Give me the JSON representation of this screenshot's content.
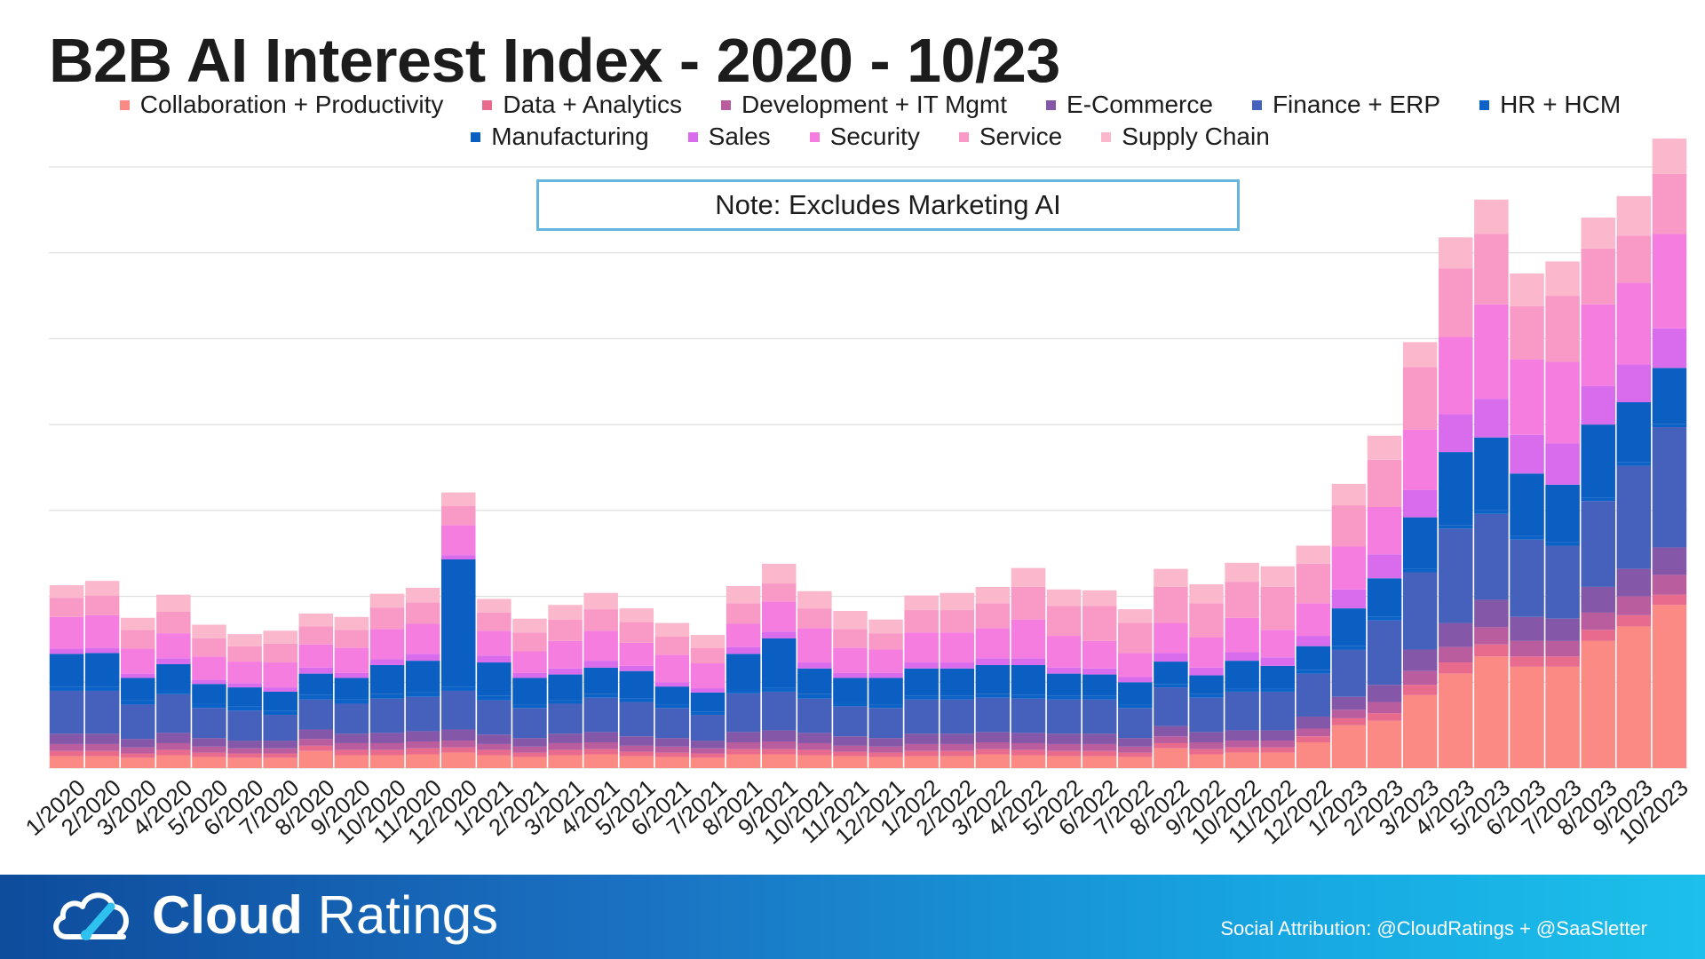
{
  "title": "B2B AI Interest Index - 2020 - 10/23",
  "note": "Note: Excludes Marketing AI",
  "footer": {
    "brand_bold": "Cloud",
    "brand_light": " Ratings",
    "logo_icon": "cloud-gauge-icon",
    "attribution": "Social Attribution: @CloudRatings + @SaaSletter"
  },
  "chart_data": {
    "type": "bar",
    "stacked": true,
    "title": "B2B AI Interest Index - 2020 - 10/23",
    "xlabel": "",
    "ylabel": "",
    "y_tick_labels_shown": false,
    "grid": true,
    "ylim": [
      0,
      70
    ],
    "legend_position": "top",
    "categories": [
      "1/2020",
      "2/2020",
      "3/2020",
      "4/2020",
      "5/2020",
      "6/2020",
      "7/2020",
      "8/2020",
      "9/2020",
      "10/2020",
      "11/2020",
      "12/2020",
      "1/2021",
      "2/2021",
      "3/2021",
      "4/2021",
      "5/2021",
      "6/2021",
      "7/2021",
      "8/2021",
      "9/2021",
      "10/2021",
      "11/2021",
      "12/2021",
      "1/2022",
      "2/2022",
      "3/2022",
      "4/2022",
      "5/2022",
      "6/2022",
      "7/2022",
      "8/2022",
      "9/2022",
      "10/2022",
      "11/2022",
      "12/2022",
      "1/2023",
      "2/2023",
      "3/2023",
      "4/2023",
      "5/2023",
      "6/2023",
      "7/2023",
      "8/2023",
      "9/2023",
      "10/2023"
    ],
    "series": [
      {
        "name": "Collaboration + Productivity",
        "color": "#fa8a83",
        "values": [
          1.4,
          1.4,
          1.2,
          1.5,
          1.3,
          1.2,
          1.2,
          2.0,
          1.5,
          1.5,
          1.6,
          1.8,
          1.5,
          1.3,
          1.5,
          1.6,
          1.4,
          1.3,
          1.2,
          1.6,
          1.6,
          1.5,
          1.4,
          1.3,
          1.4,
          1.4,
          1.6,
          1.5,
          1.4,
          1.4,
          1.3,
          2.3,
          1.6,
          1.8,
          1.8,
          3.0,
          5.0,
          5.5,
          8.5,
          11.0,
          13.0,
          11.8,
          11.8,
          14.8,
          16.5,
          19.0
        ]
      },
      {
        "name": "Data + Analytics",
        "color": "#e86a8c",
        "values": [
          0.6,
          0.6,
          0.5,
          0.6,
          0.5,
          0.5,
          0.5,
          0.6,
          0.6,
          0.6,
          0.7,
          0.6,
          0.6,
          0.5,
          0.6,
          0.6,
          0.5,
          0.5,
          0.5,
          0.6,
          0.6,
          0.6,
          0.5,
          0.5,
          0.6,
          0.6,
          0.6,
          0.6,
          0.6,
          0.6,
          0.5,
          0.6,
          0.6,
          0.6,
          0.6,
          0.7,
          0.8,
          0.9,
          1.2,
          1.3,
          1.4,
          1.2,
          1.2,
          1.3,
          1.3,
          1.2
        ]
      },
      {
        "name": "Development + IT Mgmt",
        "color": "#b95d9e",
        "values": [
          0.8,
          0.8,
          0.7,
          0.8,
          0.7,
          0.6,
          0.6,
          0.8,
          0.8,
          0.8,
          0.8,
          0.8,
          0.7,
          0.7,
          0.8,
          0.8,
          0.7,
          0.7,
          0.6,
          0.8,
          0.9,
          0.8,
          0.7,
          0.7,
          0.8,
          0.8,
          0.8,
          0.8,
          0.8,
          0.8,
          0.7,
          0.8,
          0.8,
          0.8,
          0.8,
          0.9,
          1.0,
          1.3,
          1.6,
          1.8,
          2.0,
          1.8,
          1.8,
          2.0,
          2.2,
          2.3
        ]
      },
      {
        "name": "E-Commerce",
        "color": "#8457a8",
        "values": [
          1.2,
          1.2,
          1.0,
          1.2,
          1.0,
          0.9,
          0.9,
          1.1,
          1.1,
          1.2,
          1.2,
          1.3,
          1.1,
          1.0,
          1.1,
          1.2,
          1.1,
          1.0,
          0.9,
          1.2,
          1.3,
          1.2,
          1.1,
          1.0,
          1.2,
          1.2,
          1.2,
          1.2,
          1.2,
          1.2,
          1.0,
          1.2,
          1.2,
          1.2,
          1.2,
          1.4,
          1.5,
          2.0,
          2.5,
          2.8,
          3.2,
          2.8,
          2.6,
          3.0,
          3.2,
          3.2
        ]
      },
      {
        "name": "Finance + ERP",
        "color": "#4661bc",
        "values": [
          5.0,
          5.0,
          4.0,
          4.5,
          3.5,
          3.5,
          3.0,
          3.5,
          3.5,
          4.0,
          4.0,
          4.5,
          4.0,
          3.5,
          3.5,
          4.0,
          4.0,
          3.5,
          3.0,
          4.5,
          4.5,
          4.0,
          3.5,
          3.5,
          4.0,
          4.0,
          4.0,
          4.0,
          4.0,
          4.0,
          3.5,
          4.5,
          4.0,
          4.5,
          4.5,
          5.0,
          5.5,
          7.5,
          9.0,
          11.0,
          10.0,
          9.0,
          8.5,
          10.0,
          12.0,
          14.0
        ]
      },
      {
        "name": "HR + HCM",
        "color": "#0c63c7",
        "values": [
          0.5,
          0.5,
          0.5,
          0.5,
          0.5,
          0.5,
          0.5,
          0.5,
          0.5,
          0.5,
          0.5,
          0.5,
          0.5,
          0.4,
          0.4,
          0.4,
          0.4,
          0.4,
          0.4,
          0.4,
          0.5,
          0.5,
          0.4,
          0.4,
          0.4,
          0.4,
          0.4,
          0.4,
          0.4,
          0.4,
          0.4,
          0.4,
          0.4,
          0.4,
          0.4,
          0.4,
          0.4,
          0.4,
          0.4,
          0.4,
          0.4,
          0.4,
          0.4,
          0.4,
          0.4,
          0.4
        ]
      },
      {
        "name": "Manufacturing",
        "color": "#0b5fc2",
        "values": [
          3.8,
          3.9,
          2.6,
          3.0,
          2.3,
          2.2,
          2.2,
          2.5,
          2.5,
          3.4,
          3.7,
          14.8,
          3.9,
          3.1,
          3.0,
          3.1,
          3.2,
          2.1,
          2.2,
          4.2,
          5.7,
          3.0,
          2.9,
          3.1,
          3.2,
          3.2,
          3.4,
          3.5,
          2.6,
          2.5,
          2.6,
          2.6,
          2.2,
          3.2,
          2.6,
          2.8,
          4.4,
          4.5,
          6.0,
          8.5,
          8.5,
          7.3,
          6.7,
          8.5,
          7.0,
          6.5
        ]
      },
      {
        "name": "Sales",
        "color": "#d96cec",
        "values": [
          0.6,
          0.6,
          0.5,
          0.7,
          0.5,
          0.5,
          0.5,
          0.7,
          0.6,
          0.7,
          0.8,
          0.5,
          0.8,
          0.6,
          0.7,
          0.8,
          0.6,
          0.5,
          0.5,
          0.8,
          0.8,
          0.7,
          0.6,
          0.6,
          0.7,
          0.7,
          0.8,
          0.8,
          0.7,
          0.7,
          0.6,
          1.0,
          0.9,
          1.0,
          1.0,
          1.2,
          2.2,
          2.8,
          3.2,
          4.4,
          4.5,
          4.5,
          4.8,
          4.5,
          4.4,
          4.6
        ]
      },
      {
        "name": "Security",
        "color": "#f57de0",
        "values": [
          3.7,
          3.8,
          2.9,
          2.9,
          2.7,
          2.5,
          2.9,
          2.7,
          2.9,
          3.5,
          3.5,
          3.5,
          2.9,
          2.5,
          3.2,
          3.5,
          2.7,
          3.2,
          2.9,
          2.7,
          3.5,
          4.0,
          2.9,
          2.7,
          3.5,
          3.5,
          3.5,
          4.5,
          3.7,
          3.2,
          2.8,
          3.5,
          3.5,
          4.0,
          3.2,
          3.8,
          5.0,
          5.5,
          7.0,
          9.0,
          11.0,
          8.8,
          9.5,
          9.5,
          9.5,
          11.0
        ]
      },
      {
        "name": "Service",
        "color": "#f99ac6",
        "values": [
          2.2,
          2.3,
          2.2,
          2.5,
          2.1,
          1.8,
          2.2,
          2.1,
          2.1,
          2.5,
          2.5,
          2.2,
          2.1,
          2.2,
          2.5,
          2.5,
          2.4,
          2.1,
          1.8,
          2.4,
          2.1,
          2.3,
          2.2,
          1.9,
          2.6,
          2.6,
          2.9,
          3.8,
          3.5,
          4.1,
          3.5,
          4.2,
          4.0,
          4.2,
          5.0,
          4.6,
          4.8,
          5.5,
          7.3,
          8.0,
          8.2,
          6.2,
          7.7,
          6.5,
          5.5,
          7.0
        ]
      },
      {
        "name": "Supply Chain",
        "color": "#fbb8cd",
        "values": [
          1.5,
          1.7,
          1.4,
          2.0,
          1.6,
          1.4,
          1.5,
          1.5,
          1.5,
          1.6,
          1.7,
          1.6,
          1.6,
          1.6,
          1.7,
          1.9,
          1.6,
          1.6,
          1.5,
          2.0,
          2.3,
          2.0,
          2.1,
          1.6,
          1.7,
          2.0,
          1.9,
          2.2,
          1.9,
          1.8,
          1.6,
          2.1,
          2.2,
          2.2,
          2.4,
          2.1,
          2.5,
          2.8,
          2.9,
          3.6,
          4.0,
          3.8,
          4.0,
          3.6,
          4.6,
          4.1
        ]
      }
    ]
  }
}
